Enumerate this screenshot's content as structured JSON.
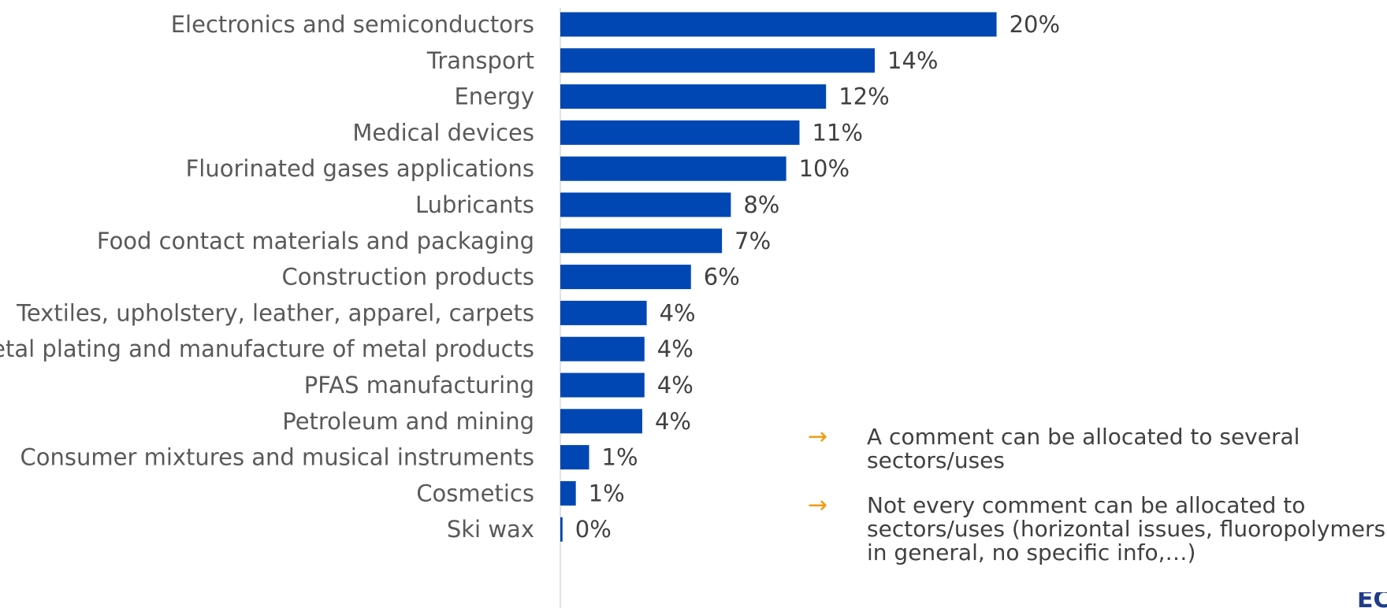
{
  "chart_data": {
    "type": "bar",
    "orientation": "horizontal",
    "categories": [
      "Electronics and semiconductors",
      "Transport",
      "Energy",
      "Medical devices",
      "Fluorinated gases applications",
      "Lubricants",
      "Food contact materials and packaging",
      "Construction products",
      "Textiles, upholstery, leather, apparel, carpets",
      "Metal plating and manufacture of metal products",
      "PFAS manufacturing",
      "Petroleum and mining",
      "Consumer mixtures and musical instruments",
      "Cosmetics",
      "Ski wax"
    ],
    "values": [
      20,
      14,
      12,
      11,
      10,
      8,
      7,
      6,
      4,
      4,
      4,
      4,
      1,
      1,
      0
    ],
    "precise_values": [
      19.7,
      14.2,
      12.0,
      10.8,
      10.2,
      7.7,
      7.3,
      5.9,
      3.9,
      3.8,
      3.8,
      3.7,
      1.3,
      0.7,
      0.1
    ],
    "value_labels": [
      "20%",
      "14%",
      "12%",
      "11%",
      "10%",
      "8%",
      "7%",
      "6%",
      "4%",
      "4%",
      "4%",
      "4%",
      "1%",
      "1%",
      "0%"
    ],
    "title": "",
    "xlabel": "",
    "ylabel": "",
    "xlim": [
      0,
      20
    ],
    "grid": false,
    "legend": "none",
    "bar_color": "#0047b3"
  },
  "notes": [
    {
      "icon": "arrow-right-icon",
      "symbol": "→",
      "text": "A comment can be allocated to several sectors/uses"
    },
    {
      "icon": "arrow-right-icon",
      "symbol": "→",
      "text": "Not every comment can be allocated to sectors/uses (horizontal issues, fluoropolymers in general, no specific info,…)"
    }
  ],
  "colors": {
    "accent": "#f39c12",
    "logo": "#1f3c88"
  },
  "logo": {
    "text": "ECH"
  }
}
